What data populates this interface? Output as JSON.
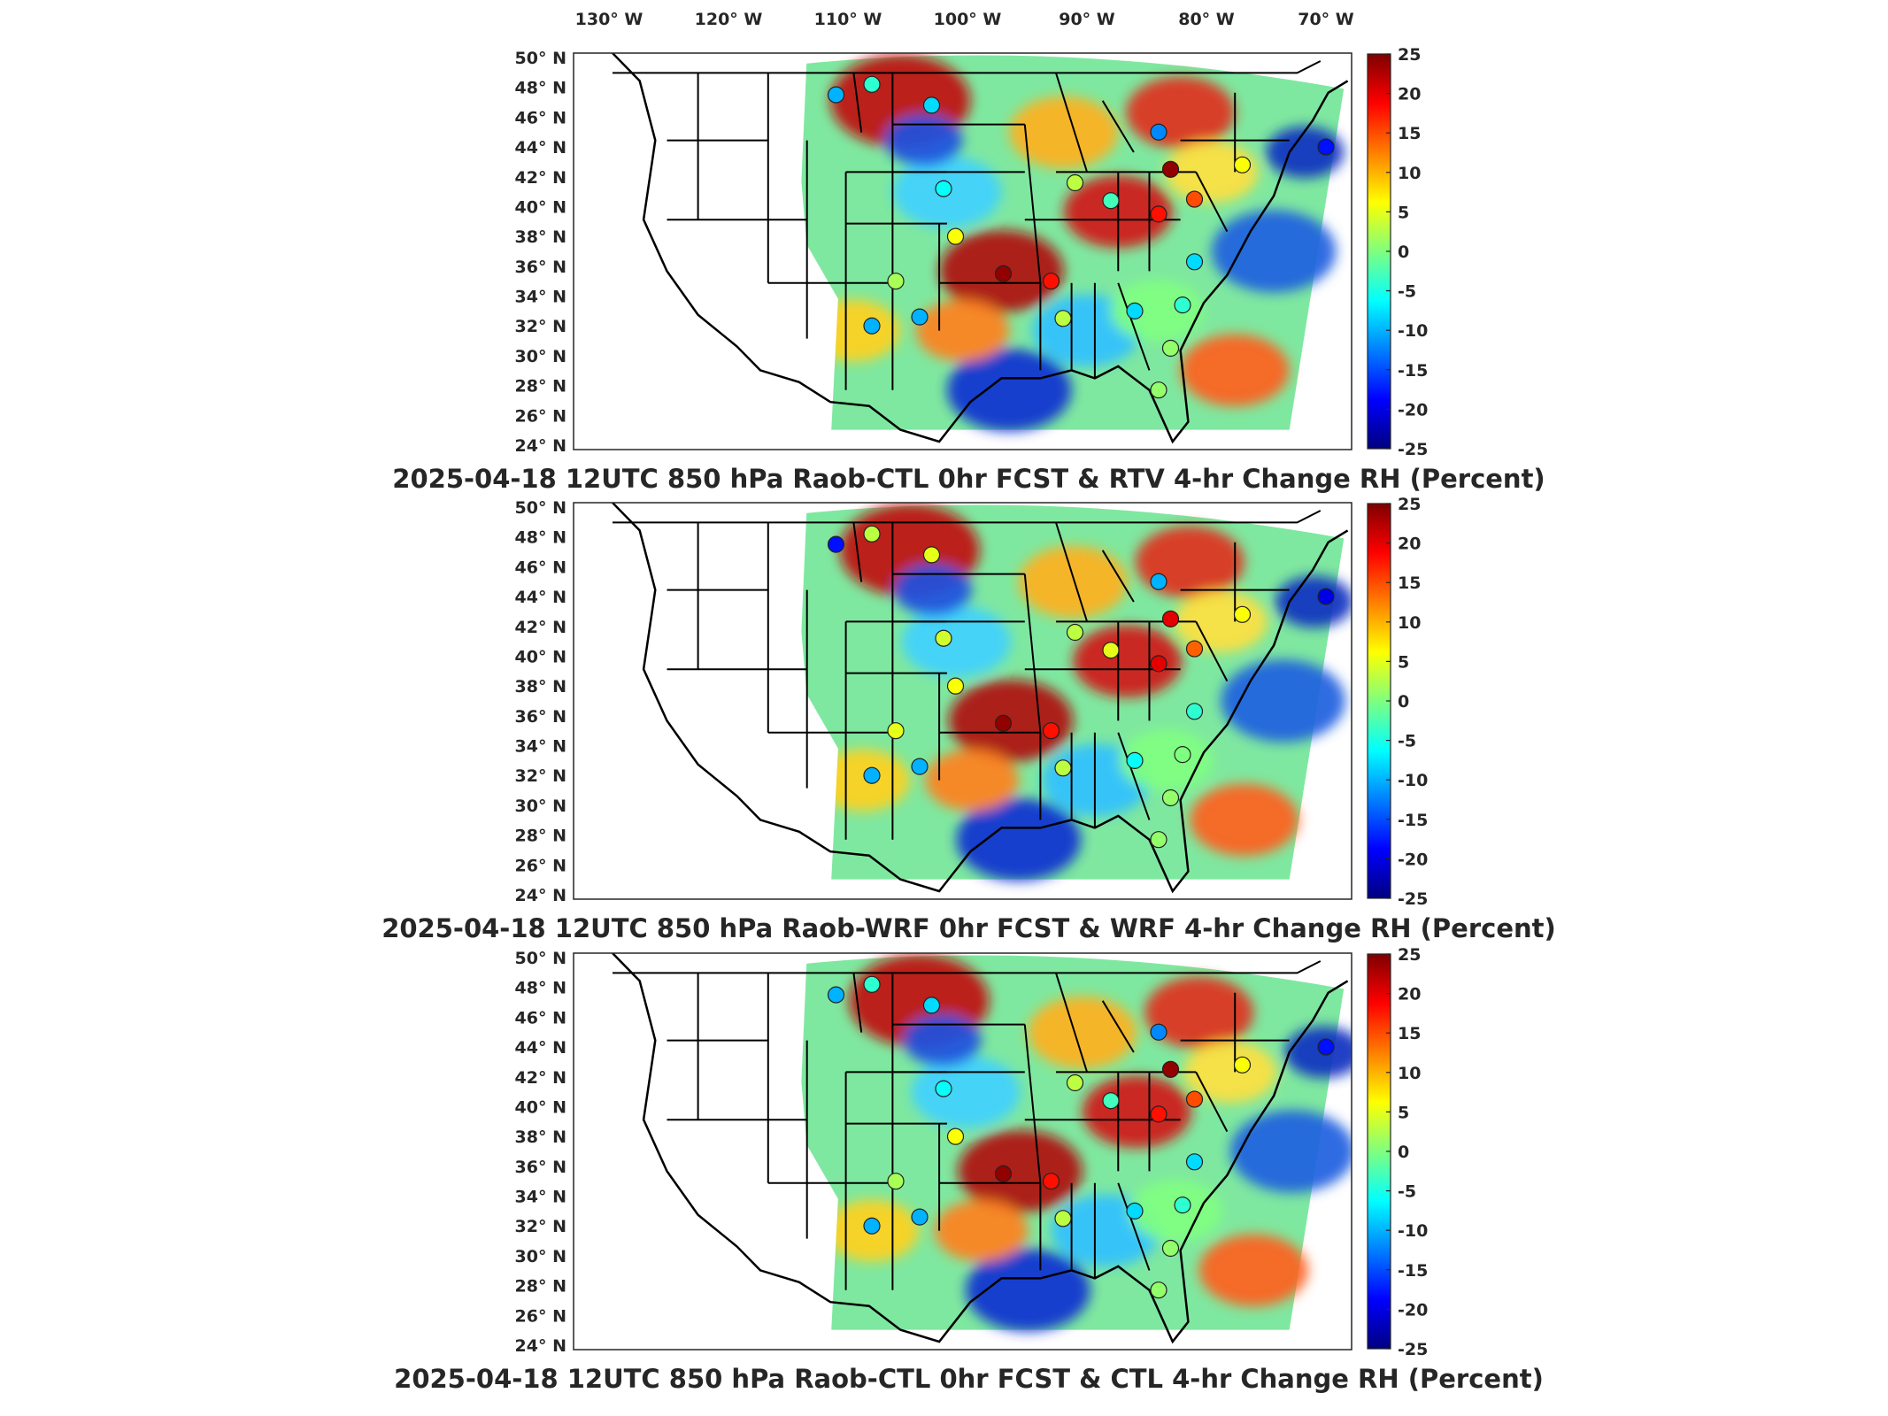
{
  "figure": {
    "lon_labels": [
      "130° W",
      "120° W",
      "110° W",
      "100° W",
      "90° W",
      "80° W",
      "70° W"
    ],
    "lon_values": [
      -130,
      -120,
      -110,
      -100,
      -90,
      -80,
      -70
    ],
    "lat_labels": [
      "50° N",
      "48° N",
      "46° N",
      "44° N",
      "42° N",
      "40° N",
      "38° N",
      "36° N",
      "34° N",
      "32° N",
      "30° N",
      "28° N",
      "26° N",
      "24° N"
    ],
    "lat_values": [
      50,
      48,
      46,
      44,
      42,
      40,
      38,
      36,
      34,
      32,
      30,
      28,
      26,
      24
    ],
    "colorbar": {
      "ticks": [
        "25",
        "20",
        "15",
        "10",
        "5",
        "0",
        "-5",
        "-10",
        "-15",
        "-20",
        "-25"
      ],
      "range": [
        -25,
        25
      ],
      "colormap": "jet",
      "colors": [
        "#00007f",
        "#0000ff",
        "#007fff",
        "#00ffff",
        "#7fff7f",
        "#ffff00",
        "#ff7f00",
        "#ff0000",
        "#7f0000"
      ]
    },
    "panels": [
      {
        "title": "2025-04-18 12UTC 850 hPa Raob-CTL 0hr FCST & RTV 4-hr Change RH (Percent)"
      },
      {
        "title": "2025-04-18 12UTC 850 hPa Raob-WRF 0hr FCST & WRF 4-hr Change RH (Percent)"
      },
      {
        "title": "2025-04-18 12UTC 850 hPa Raob-CTL 0hr FCST & CTL 4-hr Change RH (Percent)"
      }
    ]
  },
  "chart_data": [
    {
      "type": "heatmap",
      "title": "2025-04-18 12UTC 850 hPa Raob-CTL 0hr FCST & RTV 4-hr Change RH (Percent)",
      "xlim": [
        -130,
        -68
      ],
      "ylim": [
        24,
        50
      ],
      "colorbar_range": [
        -25,
        25
      ],
      "stations": [
        {
          "lon": -111,
          "lat": 47.5,
          "v": -10
        },
        {
          "lon": -108,
          "lat": 48.2,
          "v": -4
        },
        {
          "lon": -103,
          "lat": 46.8,
          "v": -8
        },
        {
          "lon": -84,
          "lat": 45,
          "v": -12
        },
        {
          "lon": -83,
          "lat": 42.5,
          "v": 24
        },
        {
          "lon": -70,
          "lat": 44,
          "v": -18
        },
        {
          "lon": -77,
          "lat": 42.8,
          "v": 6
        },
        {
          "lon": -102,
          "lat": 41.2,
          "v": -6
        },
        {
          "lon": -91,
          "lat": 41.6,
          "v": 3
        },
        {
          "lon": -88,
          "lat": 40.4,
          "v": -3
        },
        {
          "lon": -84,
          "lat": 39.5,
          "v": 18
        },
        {
          "lon": -81,
          "lat": 40.5,
          "v": 15
        },
        {
          "lon": -101,
          "lat": 38,
          "v": 6
        },
        {
          "lon": -97,
          "lat": 35.5,
          "v": 24
        },
        {
          "lon": -93,
          "lat": 35,
          "v": 18
        },
        {
          "lon": -106,
          "lat": 35,
          "v": 2
        },
        {
          "lon": -104,
          "lat": 32.6,
          "v": -10
        },
        {
          "lon": -108,
          "lat": 32,
          "v": -10
        },
        {
          "lon": -92,
          "lat": 32.5,
          "v": 3
        },
        {
          "lon": -86,
          "lat": 33,
          "v": -8
        },
        {
          "lon": -81,
          "lat": 36.3,
          "v": -8
        },
        {
          "lon": -82,
          "lat": 33.4,
          "v": -4
        },
        {
          "lon": -83,
          "lat": 30.5,
          "v": 1
        },
        {
          "lon": -84,
          "lat": 27.7,
          "v": 1
        }
      ]
    },
    {
      "type": "heatmap",
      "title": "2025-04-18 12UTC 850 hPa Raob-WRF 0hr FCST & WRF 4-hr Change RH (Percent)",
      "xlim": [
        -130,
        -68
      ],
      "ylim": [
        24,
        50
      ],
      "colorbar_range": [
        -25,
        25
      ],
      "stations": [
        {
          "lon": -111,
          "lat": 47.5,
          "v": -18
        },
        {
          "lon": -108,
          "lat": 48.2,
          "v": 3
        },
        {
          "lon": -103,
          "lat": 46.8,
          "v": 5
        },
        {
          "lon": -84,
          "lat": 45,
          "v": -10
        },
        {
          "lon": -83,
          "lat": 42.5,
          "v": 20
        },
        {
          "lon": -70,
          "lat": 44,
          "v": -20
        },
        {
          "lon": -77,
          "lat": 42.8,
          "v": 6
        },
        {
          "lon": -102,
          "lat": 41.2,
          "v": 4
        },
        {
          "lon": -91,
          "lat": 41.6,
          "v": 3
        },
        {
          "lon": -88,
          "lat": 40.4,
          "v": 5
        },
        {
          "lon": -84,
          "lat": 39.5,
          "v": 20
        },
        {
          "lon": -81,
          "lat": 40.5,
          "v": 14
        },
        {
          "lon": -101,
          "lat": 38,
          "v": 6
        },
        {
          "lon": -97,
          "lat": 35.5,
          "v": 24
        },
        {
          "lon": -93,
          "lat": 35,
          "v": 18
        },
        {
          "lon": -106,
          "lat": 35,
          "v": 5
        },
        {
          "lon": -104,
          "lat": 32.6,
          "v": -10
        },
        {
          "lon": -108,
          "lat": 32,
          "v": -10
        },
        {
          "lon": -92,
          "lat": 32.5,
          "v": 3
        },
        {
          "lon": -86,
          "lat": 33,
          "v": -6
        },
        {
          "lon": -81,
          "lat": 36.3,
          "v": -4
        },
        {
          "lon": -82,
          "lat": 33.4,
          "v": 0
        },
        {
          "lon": -83,
          "lat": 30.5,
          "v": 1
        },
        {
          "lon": -84,
          "lat": 27.7,
          "v": 1
        }
      ]
    },
    {
      "type": "heatmap",
      "title": "2025-04-18 12UTC 850 hPa Raob-CTL 0hr FCST & CTL 4-hr Change RH (Percent)",
      "xlim": [
        -130,
        -68
      ],
      "ylim": [
        24,
        50
      ],
      "colorbar_range": [
        -25,
        25
      ],
      "stations": [
        {
          "lon": -111,
          "lat": 47.5,
          "v": -10
        },
        {
          "lon": -108,
          "lat": 48.2,
          "v": -4
        },
        {
          "lon": -103,
          "lat": 46.8,
          "v": -8
        },
        {
          "lon": -84,
          "lat": 45,
          "v": -12
        },
        {
          "lon": -83,
          "lat": 42.5,
          "v": 24
        },
        {
          "lon": -70,
          "lat": 44,
          "v": -18
        },
        {
          "lon": -77,
          "lat": 42.8,
          "v": 6
        },
        {
          "lon": -102,
          "lat": 41.2,
          "v": -6
        },
        {
          "lon": -91,
          "lat": 41.6,
          "v": 3
        },
        {
          "lon": -88,
          "lat": 40.4,
          "v": -3
        },
        {
          "lon": -84,
          "lat": 39.5,
          "v": 18
        },
        {
          "lon": -81,
          "lat": 40.5,
          "v": 15
        },
        {
          "lon": -101,
          "lat": 38,
          "v": 6
        },
        {
          "lon": -97,
          "lat": 35.5,
          "v": 24
        },
        {
          "lon": -93,
          "lat": 35,
          "v": 18
        },
        {
          "lon": -106,
          "lat": 35,
          "v": 2
        },
        {
          "lon": -104,
          "lat": 32.6,
          "v": -10
        },
        {
          "lon": -108,
          "lat": 32,
          "v": -10
        },
        {
          "lon": -92,
          "lat": 32.5,
          "v": 3
        },
        {
          "lon": -86,
          "lat": 33,
          "v": -8
        },
        {
          "lon": -81,
          "lat": 36.3,
          "v": -8
        },
        {
          "lon": -82,
          "lat": 33.4,
          "v": -4
        },
        {
          "lon": -83,
          "lat": 30.5,
          "v": 1
        },
        {
          "lon": -84,
          "lat": 27.7,
          "v": 1
        }
      ]
    }
  ]
}
